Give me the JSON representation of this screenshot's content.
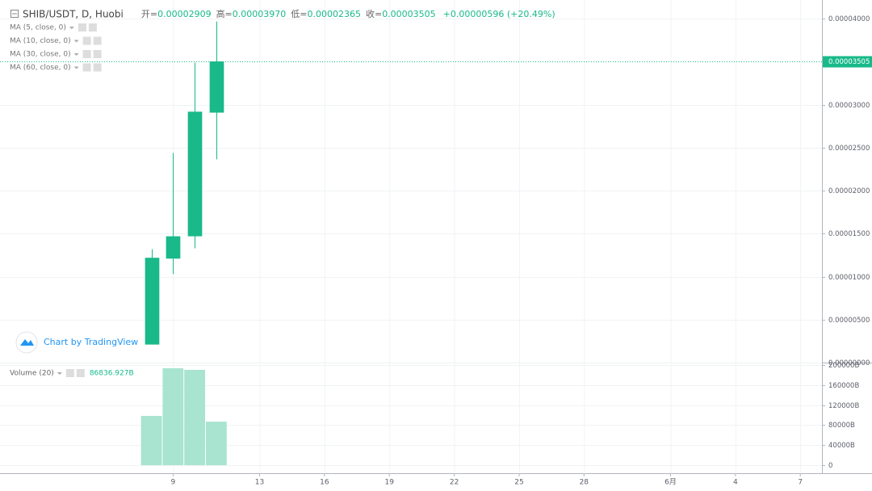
{
  "chart_data": [
    {
      "type": "candlestick",
      "title": "SHIB/USDT, D, Huobi",
      "x": [
        0,
        1,
        2,
        3
      ],
      "open": [
        2.1e-06,
        1.21e-05,
        1.47e-05,
        2.909e-05
      ],
      "high": [
        1.32e-05,
        2.44e-05,
        3.49e-05,
        3.97e-05
      ],
      "low": [
        2.1e-06,
        1.03e-05,
        1.33e-05,
        2.365e-05
      ],
      "close": [
        1.22e-05,
        1.47e-05,
        2.92e-05,
        3.505e-05
      ],
      "color": "#19b98a",
      "ohlc_labels": [
        "开=",
        "高=",
        "低=",
        "收="
      ],
      "ohlc_text": [
        "0.00002909",
        "0.00003970",
        "0.00002365",
        "0.00003505"
      ],
      "change_text": "+0.00000596 (+20.49%)",
      "xlim": [
        -7,
        31
      ],
      "xticks": [
        {
          "value": 1,
          "label": "9"
        },
        {
          "value": 5,
          "label": "13"
        },
        {
          "value": 8,
          "label": "16"
        },
        {
          "value": 11,
          "label": "19"
        },
        {
          "value": 14,
          "label": "22"
        },
        {
          "value": 17,
          "label": "25"
        },
        {
          "value": 20,
          "label": "28"
        },
        {
          "value": 24,
          "label": "6月"
        },
        {
          "value": 27,
          "label": "4"
        },
        {
          "value": 30,
          "label": "7"
        }
      ],
      "ylim": [
        0,
        4.22e-05
      ],
      "yticks": [
        {
          "value": 0,
          "label": "0.00000000"
        },
        {
          "value": 5e-06,
          "label": "0.00000500"
        },
        {
          "value": 1e-05,
          "label": "0.00001000"
        },
        {
          "value": 1.5e-05,
          "label": "0.00001500"
        },
        {
          "value": 2e-05,
          "label": "0.00002000"
        },
        {
          "value": 2.5e-05,
          "label": "0.00002500"
        },
        {
          "value": 3e-05,
          "label": "0.00003000"
        },
        {
          "value": 4e-05,
          "label": "0.00004000"
        }
      ],
      "grid": true
    },
    {
      "type": "bar",
      "title": "Volume (20)",
      "x": [
        0,
        1,
        2,
        3
      ],
      "values": [
        98400,
        193500,
        190300,
        86836.927
      ],
      "value_labels": [
        null,
        null,
        null,
        "86836.927B"
      ],
      "color": "#a8e4cf",
      "xlim": [
        -7,
        31
      ],
      "ylim": [
        -14500,
        203200
      ],
      "yticks": [
        0,
        {
          "value": 40000,
          "label": "40000B"
        },
        {
          "value": 80000,
          "label": "80000B"
        },
        {
          "value": 120000,
          "label": "120000B"
        },
        {
          "value": 160000,
          "label": "160000B"
        },
        {
          "value": 200000,
          "label": "200000B"
        }
      ],
      "grid": true
    }
  ],
  "indicators": [
    "MA (5, close, 0)",
    "MA (10, close, 0)",
    "MA (30, close, 0)",
    "MA (60, close, 0)"
  ],
  "watermark": "Chart by TradingView"
}
